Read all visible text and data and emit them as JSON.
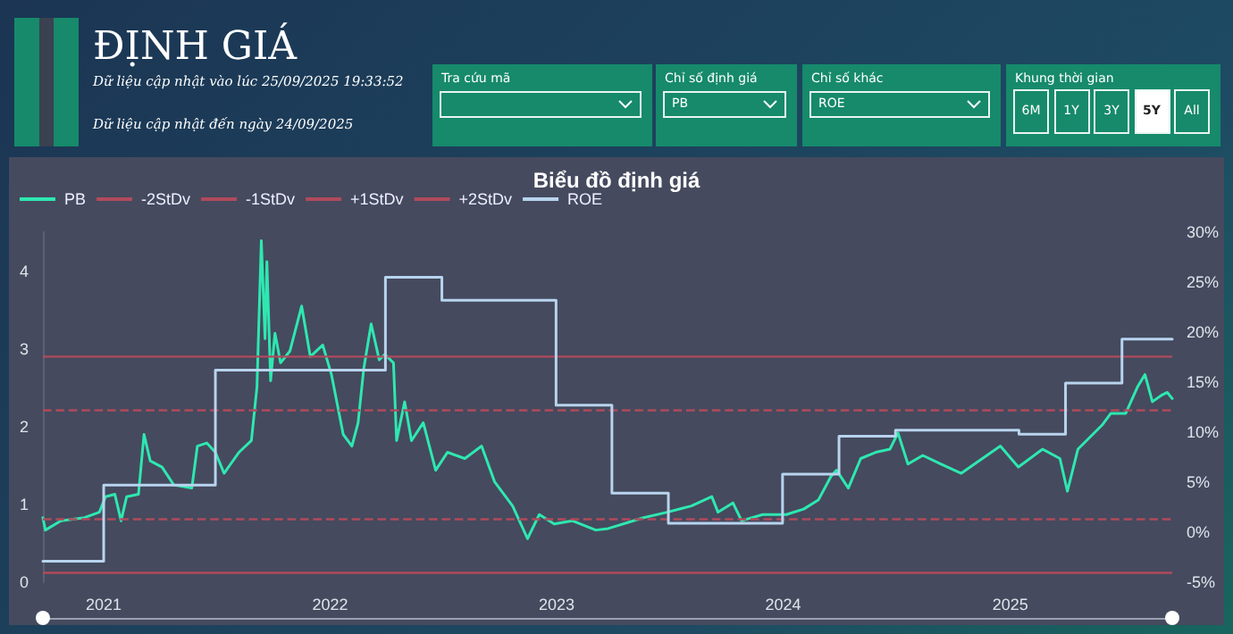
{
  "chart_data": {
    "type": "line",
    "title": "Biểu đồ định giá",
    "annotations": [
      "ĐỊNH GIÁ",
      "Dữ liệu cập nhật vào lúc 25/09/2025 19:33:52",
      "Dữ liệu cập nhật đến ngày 24/09/2025",
      "Tra cứu mã",
      "Chỉ số định giá",
      "PB",
      "Chỉ số khác",
      "ROE",
      "Khung thời gian",
      "6M",
      "1Y",
      "3Y",
      "5Y",
      "All"
    ],
    "xlim": [
      "2020-09-25",
      "2025-09-19"
    ],
    "xticks": [
      "2021",
      "2022",
      "2023",
      "2024",
      "2025"
    ],
    "ylim": [
      0,
      4.5
    ],
    "yticks": [
      0,
      1,
      2,
      3,
      4
    ],
    "y2lim": [
      -5,
      30
    ],
    "y2ticks": [
      {
        "value": -5,
        "label": "-5%"
      },
      {
        "value": 0,
        "label": "0%"
      },
      {
        "value": 5,
        "label": "5%"
      },
      {
        "value": 10,
        "label": "10%"
      },
      {
        "value": 15,
        "label": "15%"
      },
      {
        "value": 20,
        "label": "20%"
      },
      {
        "value": 25,
        "label": "25%"
      },
      {
        "value": 30,
        "label": "30%"
      }
    ],
    "grid": false,
    "legend": "top left",
    "series": [
      {
        "name": "PB",
        "color": "#2ee8b0",
        "x": [
          "2020-09-25",
          "2020-09-29",
          "2020-10-24",
          "2020-12-01",
          "2020-12-25",
          "2021-01-04",
          "2021-01-19",
          "2021-01-29",
          "2021-02-07",
          "2021-02-26",
          "2021-03-07",
          "2021-03-17",
          "2021-04-05",
          "2021-04-24",
          "2021-05-23",
          "2021-06-01",
          "2021-06-16",
          "2021-06-30",
          "2021-07-14",
          "2021-08-07",
          "2021-08-27",
          "2021-09-05",
          "2021-09-12",
          "2021-09-18",
          "2021-09-21",
          "2021-09-27",
          "2021-10-04",
          "2021-10-13",
          "2021-10-28",
          "2021-11-16",
          "2021-11-30",
          "2021-12-20",
          "2022-01-03",
          "2022-01-22",
          "2022-02-05",
          "2022-02-15",
          "2022-02-24",
          "2022-03-08",
          "2022-03-21",
          "2022-03-30",
          "2022-04-13",
          "2022-04-18",
          "2022-05-01",
          "2022-05-12",
          "2022-05-31",
          "2022-06-20",
          "2022-07-09",
          "2022-08-06",
          "2022-09-02",
          "2022-09-23",
          "2022-10-22",
          "2022-11-15",
          "2022-12-04",
          "2022-12-28",
          "2023-01-26",
          "2023-03-05",
          "2023-03-25",
          "2023-05-21",
          "2023-06-28",
          "2023-08-06",
          "2023-09-08",
          "2023-09-18",
          "2023-10-12",
          "2023-10-26",
          "2023-11-29",
          "2024-01-06",
          "2024-02-03",
          "2024-02-27",
          "2024-03-18",
          "2024-03-27",
          "2024-04-15",
          "2024-05-05",
          "2024-05-29",
          "2024-06-21",
          "2024-07-04",
          "2024-07-20",
          "2024-08-13",
          "2024-09-11",
          "2024-10-14",
          "2024-11-17",
          "2024-12-16",
          "2025-01-14",
          "2025-02-22",
          "2025-03-22",
          "2025-04-03",
          "2025-04-20",
          "2025-05-29",
          "2025-06-12",
          "2025-07-06",
          "2025-07-25",
          "2025-08-06",
          "2025-08-18",
          "2025-09-01",
          "2025-09-11",
          "2025-09-19"
        ],
        "values": [
          0.83,
          0.67,
          0.79,
          0.83,
          0.9,
          1.1,
          1.13,
          0.79,
          1.1,
          1.13,
          1.9,
          1.56,
          1.48,
          1.25,
          1.21,
          1.75,
          1.79,
          1.67,
          1.4,
          1.67,
          1.82,
          2.51,
          4.39,
          3.13,
          4.12,
          2.59,
          3.2,
          2.82,
          2.97,
          3.55,
          2.9,
          3.05,
          2.67,
          1.9,
          1.75,
          2.05,
          2.74,
          3.32,
          2.86,
          2.93,
          2.82,
          1.82,
          2.32,
          1.82,
          2.05,
          1.44,
          1.67,
          1.59,
          1.75,
          1.29,
          0.98,
          0.56,
          0.87,
          0.75,
          0.79,
          0.67,
          0.69,
          0.83,
          0.9,
          0.98,
          1.1,
          0.9,
          1.02,
          0.79,
          0.87,
          0.87,
          0.94,
          1.06,
          1.36,
          1.44,
          1.21,
          1.59,
          1.67,
          1.71,
          1.92,
          1.52,
          1.63,
          1.52,
          1.4,
          1.59,
          1.75,
          1.48,
          1.71,
          1.59,
          1.17,
          1.71,
          2.02,
          2.17,
          2.17,
          2.51,
          2.67,
          2.32,
          2.4,
          2.44,
          2.36
        ]
      },
      {
        "name": "ROE",
        "type": "step",
        "axis": "y2",
        "color": "#b8d4ee",
        "x": [
          "2020-09-25",
          "2021-01-01",
          "2021-06-30",
          "2022-03-31",
          "2022-06-30",
          "2022-12-31",
          "2023-03-31",
          "2023-06-30",
          "2023-12-31",
          "2024-03-31",
          "2024-06-30",
          "2025-01-15",
          "2025-03-31",
          "2025-06-30",
          "2025-09-19"
        ],
        "values": [
          -2.9,
          4.7,
          16.2,
          25.5,
          23.2,
          12.7,
          3.9,
          0.9,
          5.8,
          9.6,
          10.2,
          9.8,
          14.9,
          19.3,
          19.3
        ]
      }
    ],
    "ref_lines": [
      {
        "axis": "y",
        "value": 0.12,
        "label": "-2StDv",
        "color": "#b04a5c",
        "line_style": "solid"
      },
      {
        "axis": "y",
        "value": 0.81,
        "label": "-1StDv",
        "color": "#b04a5c",
        "line_style": "dashed"
      },
      {
        "axis": "y",
        "value": 2.21,
        "label": "+1StDv",
        "color": "#b04a5c",
        "line_style": "dashed"
      },
      {
        "axis": "y",
        "value": 2.9,
        "label": "+2StDv",
        "color": "#b04a5c",
        "line_style": "solid"
      }
    ]
  }
}
